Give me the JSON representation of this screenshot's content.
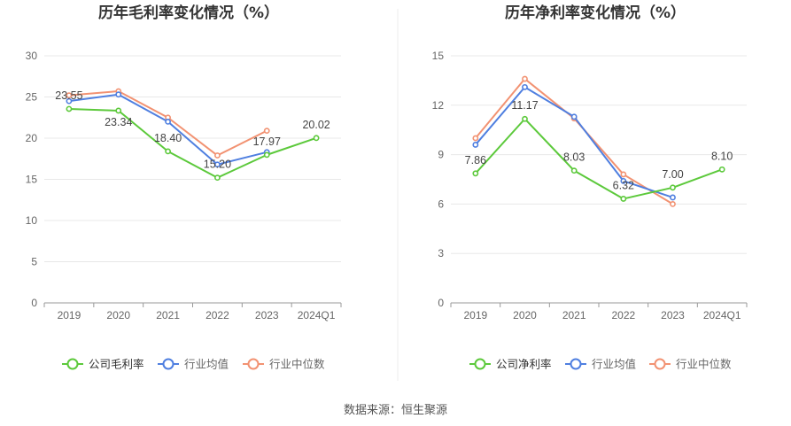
{
  "source_text": "数据来源：恒生聚源",
  "colors": {
    "company": "#5cc93b",
    "industry_avg": "#4f7fe0",
    "industry_median": "#f29272",
    "grid": "#e8e8e8",
    "axis": "#999999",
    "tick_text": "#666666",
    "label_text": "#444444",
    "divider": "#eeeeee"
  },
  "chart_data": [
    {
      "type": "line",
      "title": "历年毛利率变化情况（%）",
      "categories": [
        "2019",
        "2020",
        "2021",
        "2022",
        "2023",
        "2024Q1"
      ],
      "ylim": [
        0,
        30
      ],
      "yticks": [
        0,
        5,
        10,
        15,
        20,
        25,
        30
      ],
      "grid": true,
      "legend_position": "bottom",
      "series": [
        {
          "name": "公司毛利率",
          "color_key": "company",
          "values": [
            23.55,
            23.34,
            18.4,
            15.2,
            17.97,
            20.02
          ],
          "labels": [
            "23.55",
            "23.34",
            "18.40",
            "15.20",
            "17.97",
            "20.02"
          ]
        },
        {
          "name": "行业均值",
          "color_key": "industry_avg",
          "values": [
            24.5,
            25.3,
            22.0,
            16.8,
            18.3,
            null
          ]
        },
        {
          "name": "行业中位数",
          "color_key": "industry_median",
          "values": [
            25.2,
            25.7,
            22.5,
            17.9,
            20.9,
            null
          ]
        }
      ]
    },
    {
      "type": "line",
      "title": "历年净利率变化情况（%）",
      "categories": [
        "2019",
        "2020",
        "2021",
        "2022",
        "2023",
        "2024Q1"
      ],
      "ylim": [
        0,
        15
      ],
      "yticks": [
        0,
        3,
        6,
        9,
        12,
        15
      ],
      "grid": true,
      "legend_position": "bottom",
      "series": [
        {
          "name": "公司净利率",
          "color_key": "company",
          "values": [
            7.86,
            11.17,
            8.03,
            6.32,
            7.0,
            8.1
          ],
          "labels": [
            "7.86",
            "11.17",
            "8.03",
            "6.32",
            "7.00",
            "8.10"
          ]
        },
        {
          "name": "行业均值",
          "color_key": "industry_avg",
          "values": [
            9.6,
            13.1,
            11.3,
            7.4,
            6.4,
            null
          ]
        },
        {
          "name": "行业中位数",
          "color_key": "industry_median",
          "values": [
            10.0,
            13.6,
            11.2,
            7.8,
            6.0,
            null
          ]
        }
      ]
    }
  ]
}
